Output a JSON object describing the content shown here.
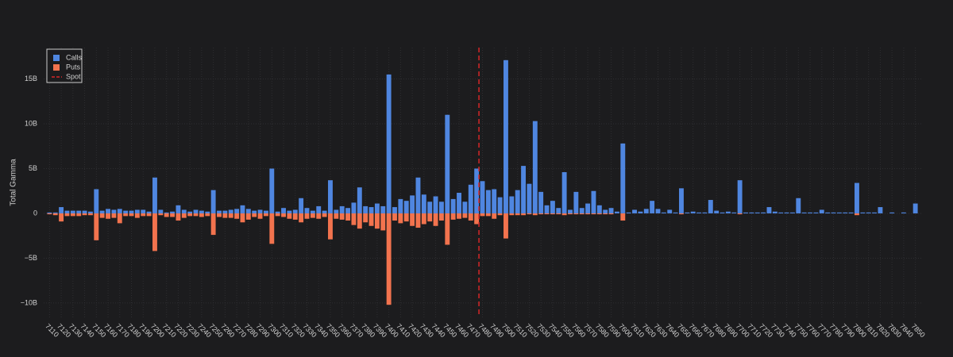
{
  "chart_data": {
    "type": "bar",
    "yaxis_title": "Total Gamma",
    "x": [
      7110,
      7115,
      7120,
      7125,
      7130,
      7135,
      7140,
      7145,
      7150,
      7155,
      7160,
      7165,
      7170,
      7175,
      7180,
      7185,
      7190,
      7195,
      7200,
      7205,
      7210,
      7215,
      7220,
      7225,
      7230,
      7235,
      7240,
      7245,
      7250,
      7255,
      7260,
      7265,
      7270,
      7275,
      7280,
      7285,
      7290,
      7295,
      7300,
      7305,
      7310,
      7315,
      7320,
      7325,
      7330,
      7335,
      7340,
      7345,
      7350,
      7355,
      7360,
      7365,
      7370,
      7375,
      7380,
      7385,
      7390,
      7395,
      7400,
      7405,
      7410,
      7415,
      7420,
      7425,
      7430,
      7435,
      7440,
      7445,
      7450,
      7455,
      7460,
      7465,
      7470,
      7475,
      7480,
      7485,
      7490,
      7495,
      7500,
      7505,
      7510,
      7515,
      7520,
      7525,
      7530,
      7535,
      7540,
      7545,
      7550,
      7555,
      7560,
      7565,
      7570,
      7575,
      7580,
      7585,
      7590,
      7595,
      7600,
      7605,
      7610,
      7615,
      7620,
      7625,
      7630,
      7635,
      7640,
      7645,
      7650,
      7655,
      7660,
      7665,
      7670,
      7675,
      7680,
      7685,
      7690,
      7695,
      7700,
      7705,
      7710,
      7715,
      7720,
      7725,
      7730,
      7735,
      7740,
      7745,
      7750,
      7755,
      7760,
      7765,
      7770,
      7775,
      7780,
      7785,
      7790,
      7795,
      7800,
      7805,
      7810,
      7815,
      7820,
      7825,
      7830,
      7835,
      7840,
      7845,
      7850
    ],
    "series": [
      {
        "name": "Calls",
        "color": "#4f86e0",
        "values": [
          0.1,
          0.1,
          0.7,
          0.3,
          0.3,
          0.3,
          0.3,
          0.2,
          2.7,
          0.3,
          0.5,
          0.4,
          0.5,
          0.3,
          0.3,
          0.4,
          0.4,
          0.2,
          4.0,
          0.4,
          0.1,
          0.2,
          0.9,
          0.4,
          0.2,
          0.4,
          0.3,
          0.2,
          2.6,
          0.3,
          0.3,
          0.4,
          0.5,
          0.9,
          0.5,
          0.3,
          0.4,
          0.3,
          5.0,
          0.2,
          0.6,
          0.3,
          0.4,
          1.7,
          0.6,
          0.3,
          0.8,
          0.3,
          3.7,
          0.4,
          0.8,
          0.6,
          1.2,
          2.9,
          0.8,
          0.7,
          1.1,
          0.8,
          15.5,
          0.7,
          1.6,
          1.4,
          2.0,
          4.0,
          2.1,
          1.3,
          1.9,
          1.3,
          11.0,
          1.6,
          2.3,
          1.3,
          3.2,
          5.0,
          3.6,
          2.6,
          2.7,
          1.8,
          17.1,
          1.9,
          2.6,
          5.3,
          3.3,
          10.3,
          2.4,
          0.9,
          1.4,
          0.6,
          4.6,
          0.4,
          2.4,
          0.6,
          1.1,
          2.5,
          0.9,
          0.4,
          0.6,
          0.2,
          7.8,
          0.1,
          0.4,
          0.2,
          0.5,
          1.4,
          0.5,
          0.1,
          0.4,
          0.1,
          2.8,
          0.1,
          0.2,
          0.1,
          0.1,
          1.5,
          0.3,
          0.1,
          0.2,
          0.1,
          3.7,
          0.1,
          0.1,
          0.1,
          0.1,
          0.7,
          0.2,
          0.1,
          0.1,
          0.1,
          1.7,
          0.1,
          0.1,
          0.1,
          0.4,
          0.1,
          0.1,
          0.1,
          0.1,
          0.1,
          3.4,
          0.1,
          0.1,
          0.1,
          0.7,
          0,
          0.1,
          0,
          0.1,
          0,
          1.1
        ]
      },
      {
        "name": "Puts",
        "color": "#f2734e",
        "values": [
          -0.1,
          -0.2,
          -0.9,
          -0.3,
          -0.3,
          -0.3,
          -0.2,
          -0.2,
          -3.0,
          -0.5,
          -0.6,
          -0.5,
          -1.1,
          -0.3,
          -0.3,
          -0.5,
          -0.3,
          -0.3,
          -4.2,
          -0.2,
          -0.4,
          -0.4,
          -0.8,
          -0.5,
          -0.3,
          -0.3,
          -0.4,
          -0.3,
          -2.4,
          -0.4,
          -0.5,
          -0.5,
          -0.6,
          -1.0,
          -0.7,
          -0.4,
          -0.6,
          -0.3,
          -3.4,
          -0.3,
          -0.4,
          -0.6,
          -0.7,
          -1.0,
          -0.6,
          -0.5,
          -0.6,
          -0.4,
          -2.9,
          -0.6,
          -0.7,
          -0.8,
          -1.3,
          -1.7,
          -1.0,
          -1.4,
          -1.7,
          -1.9,
          -10.2,
          -0.8,
          -1.1,
          -0.9,
          -1.4,
          -1.6,
          -1.2,
          -0.9,
          -1.4,
          -0.8,
          -3.5,
          -0.7,
          -0.6,
          -0.5,
          -0.8,
          -1.2,
          -0.3,
          -0.3,
          -0.6,
          -0.2,
          -2.8,
          -0.2,
          -0.2,
          -0.2,
          -0.1,
          -0.2,
          -0.1,
          -0.1,
          -0.1,
          -0.1,
          -0.2,
          -0.1,
          -0.1,
          -0.1,
          -0.1,
          -0.1,
          -0.1,
          -0.1,
          -0.1,
          0,
          -0.8,
          0,
          0,
          0,
          0,
          0,
          0,
          0,
          0,
          0,
          -0.1,
          0,
          0,
          0,
          0,
          0,
          0,
          0,
          0,
          0,
          -0.1,
          0,
          0,
          0,
          0,
          0,
          0,
          0,
          0,
          0,
          0,
          0,
          0,
          0,
          0,
          0,
          0,
          0,
          0,
          0,
          -0.2,
          0,
          0,
          0,
          0,
          0,
          0,
          0,
          0,
          0,
          0
        ]
      }
    ],
    "spot": {
      "name": "Spot",
      "x": 7477,
      "color": "#d62728"
    },
    "xlim": [
      7105,
      7855
    ],
    "xticks": [
      7110,
      7120,
      7130,
      7140,
      7150,
      7160,
      7170,
      7180,
      7190,
      7200,
      7210,
      7220,
      7230,
      7240,
      7250,
      7260,
      7270,
      7280,
      7290,
      7300,
      7310,
      7320,
      7330,
      7340,
      7350,
      7360,
      7370,
      7380,
      7390,
      7400,
      7410,
      7420,
      7430,
      7440,
      7450,
      7460,
      7470,
      7480,
      7490,
      7500,
      7510,
      7520,
      7530,
      7540,
      7550,
      7560,
      7570,
      7580,
      7590,
      7600,
      7610,
      7620,
      7630,
      7640,
      7650,
      7660,
      7670,
      7680,
      7690,
      7700,
      7710,
      7720,
      7730,
      7740,
      7750,
      7760,
      7770,
      7780,
      7790,
      7800,
      7810,
      7820,
      7830,
      7840,
      7850
    ],
    "ylim": [
      -11.6,
      18.5
    ],
    "yticks": [
      {
        "value": -10,
        "label": "−10B"
      },
      {
        "value": -5,
        "label": "−5B"
      },
      0,
      {
        "value": 5,
        "label": "5B"
      },
      {
        "value": 10,
        "label": "10B"
      },
      {
        "value": 15,
        "label": "15B"
      }
    ],
    "grid": true,
    "legend": "top-left"
  }
}
